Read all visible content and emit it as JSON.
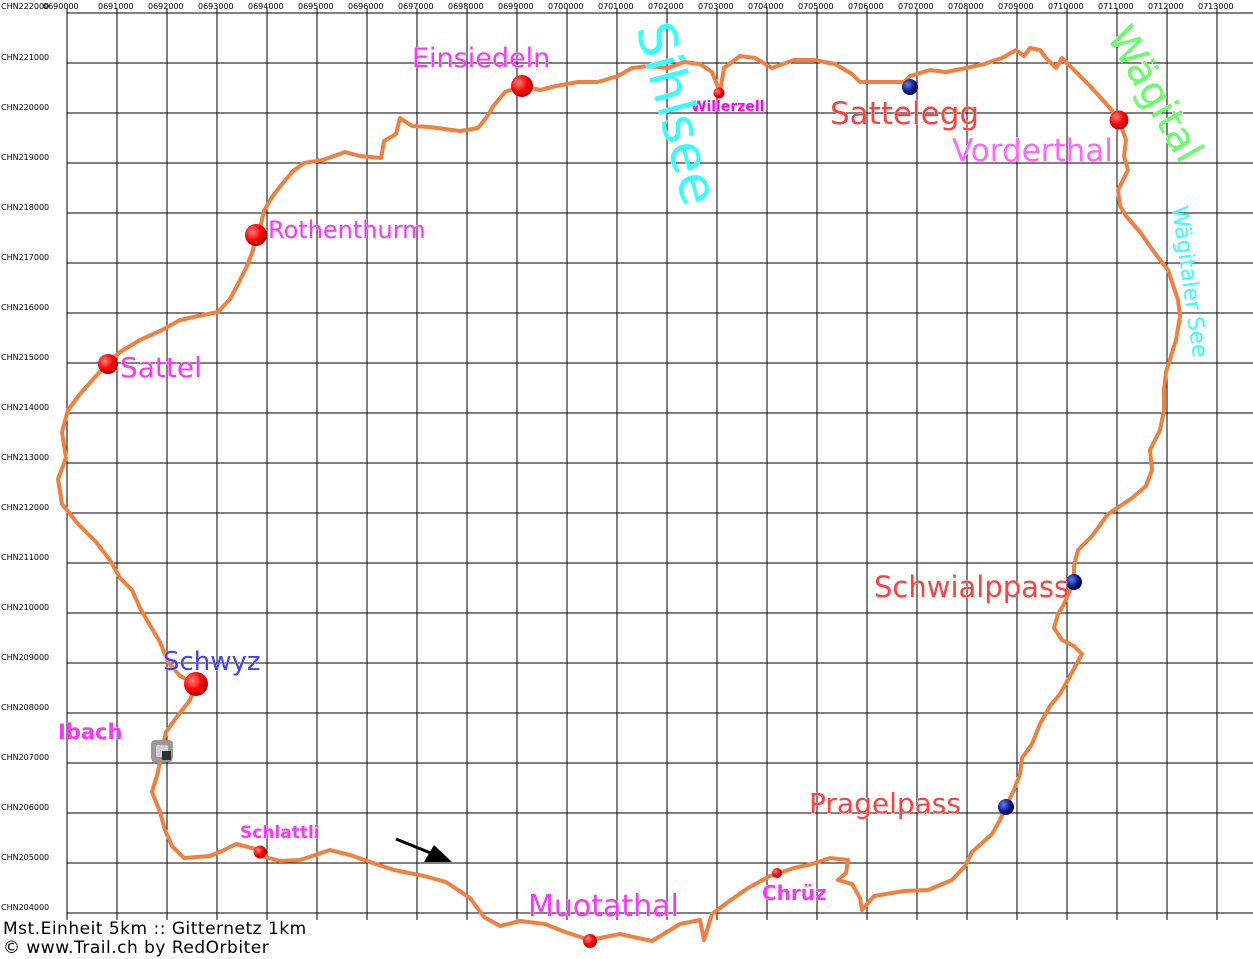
{
  "map": {
    "x_ticks": [
      "0690000",
      "0691000",
      "0692000",
      "0693000",
      "0694000",
      "0695000",
      "0696000",
      "0697000",
      "0698000",
      "0699000",
      "0700000",
      "0701000",
      "0702000",
      "0703000",
      "0704000",
      "0705000",
      "0706000",
      "0707000",
      "0708000",
      "0709000",
      "0710000",
      "0711000",
      "0712000",
      "0713000"
    ],
    "y_ticks": [
      "CHN222000",
      "CHN221000",
      "CHN220000",
      "CHN219000",
      "CHN218000",
      "CHN217000",
      "CHN216000",
      "CHN215000",
      "CHN214000",
      "CHN213000",
      "CHN212000",
      "CHN211000",
      "CHN210000",
      "CHN209000",
      "CHN208000",
      "CHN207000",
      "CHN206000",
      "CHN205000",
      "CHN204000"
    ],
    "route_color": "#f08040",
    "places": [
      {
        "name": "Einsiedeln",
        "color": "#ff33ff",
        "marker": "red-large"
      },
      {
        "name": "Willerzell",
        "color": "#ff00ff",
        "marker": "red-small"
      },
      {
        "name": "Sattelegg",
        "color": "#ff4040",
        "marker": "blue"
      },
      {
        "name": "Vorderthal",
        "color": "#ff66ff",
        "marker": "red-medium"
      },
      {
        "name": "Rothenthurm",
        "color": "#ff33ff",
        "marker": "red-medium"
      },
      {
        "name": "Sattel",
        "color": "#ff33ff",
        "marker": "red-medium"
      },
      {
        "name": "Schwyz",
        "color": "#4040ff",
        "marker": "red-large"
      },
      {
        "name": "Ibach",
        "color": "#ff33ff",
        "marker": "gray-square"
      },
      {
        "name": "Schlattli",
        "color": "#ff33ff",
        "marker": "red-small"
      },
      {
        "name": "Muotathal",
        "color": "#ff33ff",
        "marker": "red-small"
      },
      {
        "name": "Chrüz",
        "color": "#ff33ff",
        "marker": "red-small"
      },
      {
        "name": "Pragelpass",
        "color": "#ff4040",
        "marker": "blue"
      },
      {
        "name": "Schwialppass",
        "color": "#ff4040",
        "marker": "blue"
      }
    ],
    "water": [
      {
        "name": "Sihlsee",
        "color": "#33ffff"
      },
      {
        "name": "Wägitaler See",
        "color": "#33ffff"
      }
    ],
    "valley": {
      "name": "Wägital",
      "color": "#66ff66"
    }
  },
  "footer": {
    "scale": "Mst.Einheit 5km  :: Gitternetz 1km",
    "credit": "© www.Trail.ch by RedOrbiter"
  }
}
